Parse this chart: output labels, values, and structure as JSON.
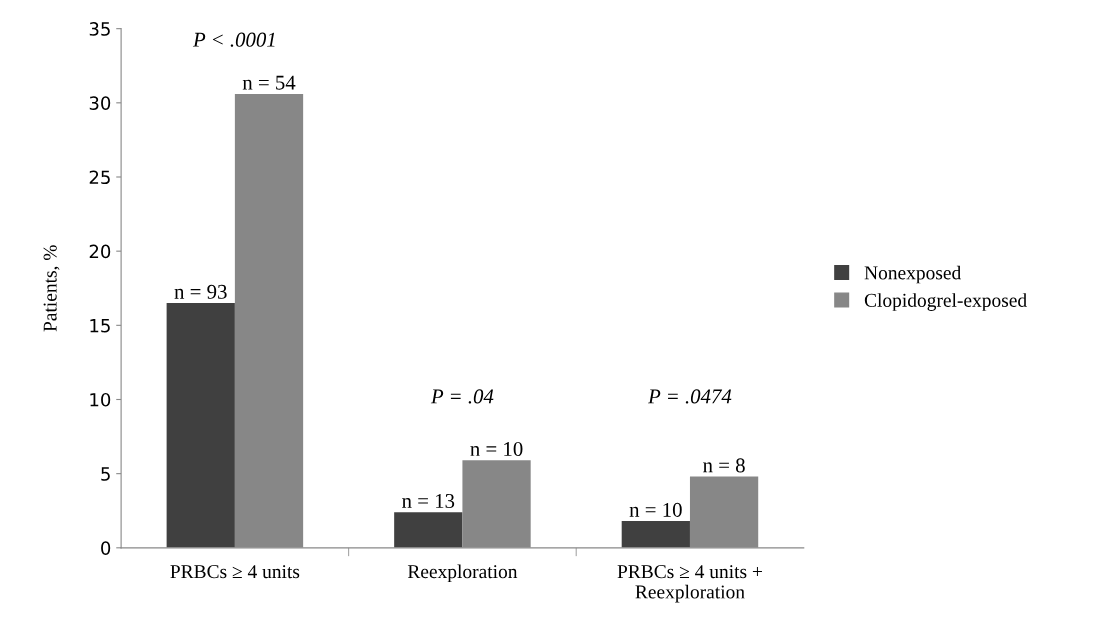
{
  "chart_data": {
    "type": "bar",
    "ylabel": "Patients, %",
    "categories": [
      "PRBCs ≥ 4 units",
      "Reexploration",
      "PRBCs ≥ 4 units +\nReexploration"
    ],
    "series": [
      {
        "name": "Nonexposed",
        "color": "#404040",
        "values": [
          16.5,
          2.4,
          1.8
        ]
      },
      {
        "name": "Clopidogrel-exposed",
        "color": "#878787",
        "values": [
          30.6,
          5.9,
          4.8
        ]
      }
    ],
    "annotations": [
      "P < .0001",
      "P = .04",
      "P = .0474",
      {
        "text": "n = 93",
        "x": "PRBCs ≥ 4 units",
        "y": 16.5
      },
      {
        "text": "n = 54",
        "x": "PRBCs ≥ 4 units",
        "y": 30.6
      },
      {
        "text": "n = 13",
        "x": "Reexploration",
        "y": 2.4
      },
      {
        "text": "n = 10",
        "x": "Reexploration",
        "y": 5.9
      },
      {
        "text": "n = 10",
        "x": "PRBCs ≥ 4 units +\nReexploration",
        "y": 1.8
      },
      {
        "text": "n = 8",
        "x": "PRBCs ≥ 4 units +\nReexploration",
        "y": 4.8
      }
    ],
    "ylim": [
      0,
      35
    ],
    "yticks": [
      0,
      5,
      10,
      15,
      20,
      25,
      30,
      35
    ],
    "grid": false,
    "legend": "right"
  }
}
